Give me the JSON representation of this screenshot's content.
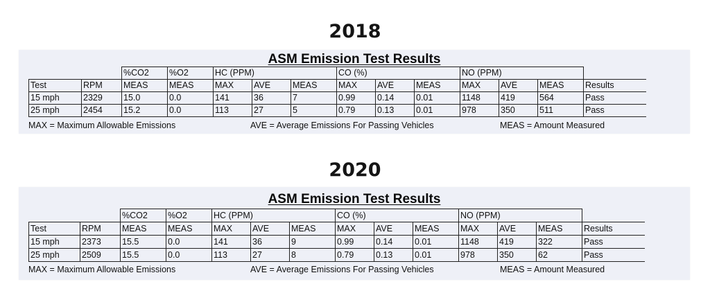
{
  "sections": [
    {
      "year": "2018",
      "title": "ASM Emission Test Results",
      "group_headers": [
        "%CO2",
        "%O2",
        "HC (PPM)",
        "CO (%)",
        "NO (PPM)"
      ],
      "column_headers": [
        "Test",
        "RPM",
        "MEAS",
        "MEAS",
        "MAX",
        "AVE",
        "MEAS",
        "MAX",
        "AVE",
        "MEAS",
        "MAX",
        "AVE",
        "MEAS",
        "Results"
      ],
      "rows": [
        [
          "15 mph",
          "2329",
          "15.0",
          "0.0",
          "141",
          "36",
          "7",
          "0.99",
          "0.14",
          "0.01",
          "1148",
          "419",
          "564",
          "Pass"
        ],
        [
          "25 mph",
          "2454",
          "15.2",
          "0.0",
          "113",
          "27",
          "5",
          "0.79",
          "0.13",
          "0.01",
          "978",
          "350",
          "511",
          "Pass"
        ]
      ],
      "legend": [
        "MAX = Maximum Allowable Emissions",
        "AVE = Average Emissions For Passing Vehicles",
        "MEAS = Amount Measured"
      ]
    },
    {
      "year": "2020",
      "title": "ASM Emission Test Results",
      "group_headers": [
        "%CO2",
        "%O2",
        "HC (PPM)",
        "CO (%)",
        "NO (PPM)"
      ],
      "column_headers": [
        "Test",
        "RPM",
        "MEAS",
        "MEAS",
        "MAX",
        "AVE",
        "MEAS",
        "MAX",
        "AVE",
        "MEAS",
        "MAX",
        "AVE",
        "MEAS",
        "Results"
      ],
      "rows": [
        [
          "15 mph",
          "2373",
          "15.5",
          "0.0",
          "141",
          "36",
          "9",
          "0.99",
          "0.14",
          "0.01",
          "1148",
          "419",
          "322",
          "Pass"
        ],
        [
          "25 mph",
          "2509",
          "15.5",
          "0.0",
          "113",
          "27",
          "8",
          "0.79",
          "0.13",
          "0.01",
          "978",
          "350",
          "62",
          "Pass"
        ]
      ],
      "legend": [
        "MAX = Maximum Allowable Emissions",
        "AVE = Average Emissions For Passing Vehicles",
        "MEAS = Amount Measured"
      ]
    }
  ]
}
